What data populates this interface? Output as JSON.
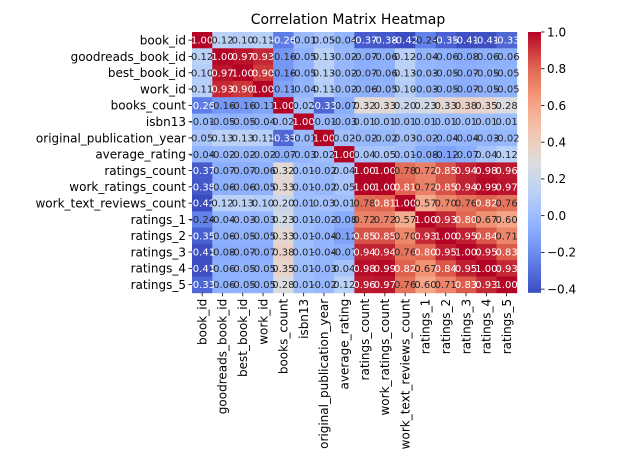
{
  "chart_data": {
    "type": "heatmap",
    "title": "Correlation Matrix Heatmap",
    "colormap": "coolwarm",
    "row_labels": [
      "book_id",
      "goodreads_book_id",
      "best_book_id",
      "work_id",
      "books_count",
      "isbn13",
      "original_publication_year",
      "average_rating",
      "ratings_count",
      "work_ratings_count",
      "work_text_reviews_count",
      "ratings_1",
      "ratings_2",
      "ratings_3",
      "ratings_4",
      "ratings_5"
    ],
    "col_labels": [
      "book_id",
      "goodreads_book_id",
      "best_book_id",
      "work_id",
      "books_count",
      "isbn13",
      "original_publication_year",
      "average_rating",
      "ratings_count",
      "work_ratings_count",
      "work_text_reviews_count",
      "ratings_1",
      "ratings_2",
      "ratings_3",
      "ratings_4",
      "ratings_5"
    ],
    "values": [
      [
        1.0,
        0.12,
        0.1,
        0.11,
        -0.26,
        -0.01,
        0.05,
        -0.04,
        -0.37,
        -0.38,
        -0.42,
        -0.24,
        -0.35,
        -0.41,
        -0.41,
        -0.33
      ],
      [
        0.12,
        1.0,
        0.97,
        0.93,
        -0.16,
        -0.05,
        0.13,
        -0.02,
        -0.07,
        -0.06,
        0.12,
        -0.04,
        -0.06,
        -0.08,
        -0.06,
        -0.06
      ],
      [
        0.1,
        0.97,
        1.0,
        0.9,
        -0.16,
        -0.05,
        0.13,
        -0.02,
        -0.07,
        -0.06,
        0.13,
        -0.03,
        -0.05,
        -0.07,
        -0.05,
        -0.05
      ],
      [
        0.11,
        0.93,
        0.9,
        1.0,
        -0.11,
        -0.04,
        0.11,
        -0.02,
        -0.06,
        -0.05,
        0.1,
        -0.03,
        -0.05,
        -0.07,
        -0.05,
        -0.05
      ],
      [
        -0.26,
        -0.16,
        -0.16,
        -0.11,
        1.0,
        0.02,
        -0.33,
        -0.07,
        0.32,
        0.33,
        0.2,
        0.23,
        0.33,
        0.38,
        0.35,
        0.28
      ],
      [
        -0.01,
        -0.05,
        -0.05,
        -0.04,
        0.02,
        1.0,
        -0.01,
        -0.03,
        0.01,
        0.01,
        0.01,
        0.01,
        0.01,
        0.01,
        0.01,
        0.01
      ],
      [
        0.05,
        0.13,
        0.13,
        0.11,
        -0.33,
        -0.01,
        1.0,
        0.02,
        -0.02,
        -0.02,
        0.03,
        -0.02,
        -0.04,
        -0.04,
        -0.03,
        -0.02
      ],
      [
        -0.04,
        -0.02,
        -0.02,
        -0.02,
        -0.07,
        -0.03,
        0.02,
        1.0,
        0.04,
        0.05,
        0.01,
        -0.08,
        -0.12,
        -0.07,
        0.04,
        0.12
      ],
      [
        -0.37,
        -0.07,
        -0.07,
        -0.06,
        0.32,
        0.01,
        -0.02,
        0.04,
        1.0,
        1.0,
        0.78,
        0.72,
        0.85,
        0.94,
        0.98,
        0.96
      ],
      [
        -0.38,
        -0.06,
        -0.06,
        -0.05,
        0.33,
        0.01,
        -0.02,
        0.05,
        1.0,
        1.0,
        0.81,
        0.72,
        0.85,
        0.94,
        0.99,
        0.97
      ],
      [
        -0.42,
        0.12,
        0.13,
        0.1,
        0.2,
        0.01,
        0.03,
        0.01,
        0.78,
        0.81,
        1.0,
        0.57,
        0.7,
        0.76,
        0.82,
        0.76
      ],
      [
        -0.24,
        -0.04,
        -0.03,
        -0.03,
        0.23,
        0.01,
        -0.02,
        -0.08,
        0.72,
        0.72,
        0.57,
        1.0,
        0.93,
        0.8,
        0.67,
        0.6
      ],
      [
        -0.35,
        -0.06,
        -0.05,
        -0.05,
        0.33,
        0.01,
        -0.04,
        -0.12,
        0.85,
        0.85,
        0.7,
        0.93,
        1.0,
        0.95,
        0.84,
        0.71
      ],
      [
        -0.41,
        -0.08,
        -0.07,
        -0.07,
        0.38,
        0.01,
        -0.04,
        -0.07,
        0.94,
        0.94,
        0.76,
        0.8,
        0.95,
        1.0,
        0.95,
        0.83
      ],
      [
        -0.41,
        -0.06,
        -0.05,
        -0.05,
        0.35,
        0.01,
        -0.03,
        0.04,
        0.98,
        0.99,
        0.82,
        0.67,
        0.84,
        0.95,
        1.0,
        0.93
      ],
      [
        -0.33,
        -0.06,
        -0.05,
        -0.05,
        0.28,
        0.01,
        -0.02,
        0.12,
        0.96,
        0.97,
        0.76,
        0.6,
        0.71,
        0.83,
        0.93,
        1.0
      ]
    ],
    "vmin": -0.42,
    "vmax": 1.0,
    "colorbar_ticks": [
      1.0,
      0.8,
      0.6,
      0.4,
      0.2,
      0.0,
      -0.2,
      -0.4
    ],
    "grid": false
  }
}
